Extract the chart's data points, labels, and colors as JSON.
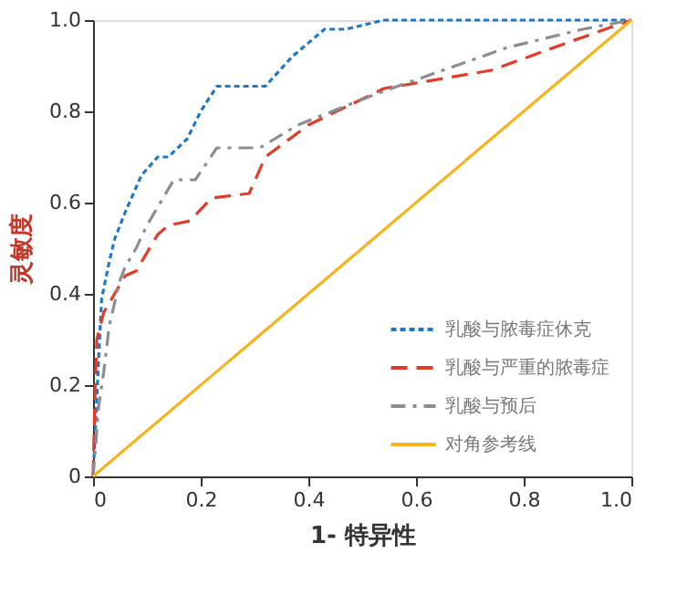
{
  "chart_data": {
    "type": "line",
    "xlabel": "1- 特异性",
    "ylabel": "灵敏度",
    "xlim": [
      0,
      1
    ],
    "ylim": [
      0,
      1
    ],
    "xticks": [
      0,
      0.2,
      0.4,
      0.6,
      0.8,
      {
        "value": 1,
        "label": "1.0"
      }
    ],
    "yticks": [
      0,
      0.2,
      0.4,
      0.6,
      0.8,
      {
        "value": 1,
        "label": "1.0"
      }
    ],
    "grid": false,
    "legend": "bottom right",
    "marker": "none",
    "series": [
      {
        "name": "乳酸与脓毒症休克",
        "color": "#1f78c8",
        "line_style": "dotted",
        "x": [
          0,
          0.003,
          0.01,
          0.016,
          0.03,
          0.04,
          0.06,
          0.09,
          0.12,
          0.14,
          0.175,
          0.2,
          0.23,
          0.32,
          0.37,
          0.43,
          0.47,
          0.54,
          1
        ],
        "values": [
          0,
          0.07,
          0.25,
          0.39,
          0.47,
          0.52,
          0.58,
          0.66,
          0.7,
          0.7,
          0.74,
          0.8,
          0.855,
          0.855,
          0.92,
          0.98,
          0.98,
          1,
          1
        ]
      },
      {
        "name": "乳酸与严重的脓毒症",
        "color": "#e03c28",
        "line_style": "dashed",
        "x": [
          0,
          0.004,
          0.007,
          0.02,
          0.04,
          0.06,
          0.08,
          0.12,
          0.14,
          0.18,
          0.22,
          0.29,
          0.32,
          0.4,
          0.54,
          0.74,
          0.88,
          1
        ],
        "values": [
          0,
          0.2,
          0.3,
          0.36,
          0.4,
          0.44,
          0.45,
          0.53,
          0.55,
          0.56,
          0.61,
          0.62,
          0.7,
          0.77,
          0.85,
          0.89,
          0.95,
          1
        ]
      },
      {
        "name": "乳酸与预后",
        "color": "#8c8c96",
        "line_style": "dashdot",
        "x": [
          0,
          0.005,
          0.01,
          0.02,
          0.03,
          0.05,
          0.06,
          0.08,
          0.1,
          0.15,
          0.19,
          0.23,
          0.31,
          0.38,
          0.53,
          0.77,
          0.91,
          1
        ],
        "values": [
          0,
          0.07,
          0.15,
          0.23,
          0.33,
          0.43,
          0.46,
          0.5,
          0.55,
          0.65,
          0.65,
          0.72,
          0.72,
          0.77,
          0.84,
          0.94,
          0.98,
          1
        ]
      },
      {
        "name": "对角参考线",
        "color": "#f5b41e",
        "line_style": "solid",
        "x": [
          0,
          1
        ],
        "values": [
          0,
          1
        ]
      }
    ]
  }
}
